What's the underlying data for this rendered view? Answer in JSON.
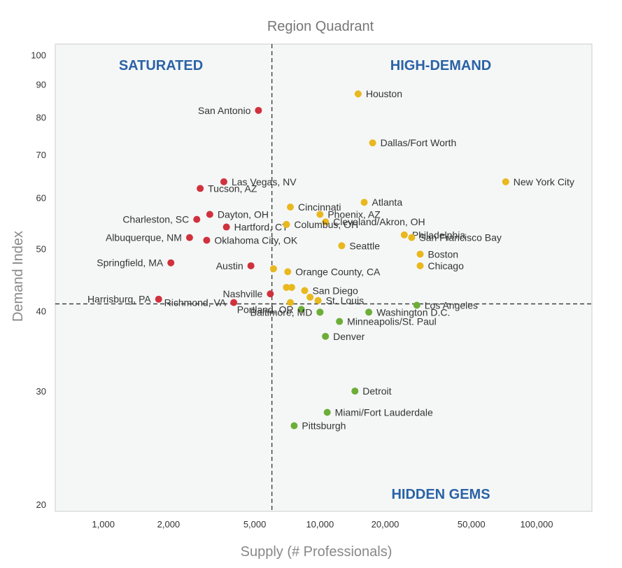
{
  "chart_data": {
    "type": "scatter",
    "title": "Region Quadrant",
    "xlabel": "Supply (# Professionals)",
    "ylabel": "Demand Index",
    "xscale": "log",
    "yscale": "log",
    "xlim": [
      600,
      180000
    ],
    "ylim": [
      19.5,
      104
    ],
    "xticks": [
      1000,
      2000,
      5000,
      10000,
      20000,
      50000,
      100000
    ],
    "xtick_labels": [
      "1,000",
      "2,000",
      "5,000",
      "10,000",
      "20,000",
      "50,000",
      "100,000"
    ],
    "yticks": [
      20,
      30,
      40,
      50,
      60,
      70,
      80,
      90,
      100
    ],
    "ytick_labels": [
      "20",
      "30",
      "40",
      "50",
      "60",
      "70",
      "80",
      "90",
      "100"
    ],
    "divider_x": 6000,
    "divider_y": 41,
    "quadrants": {
      "top_left": "SATURATED",
      "top_right": "HIGH-DEMAND",
      "bottom_right": "HIDDEN GEMS"
    },
    "colors": {
      "saturated": "#d0313d",
      "high_demand": "#e8b81e",
      "hidden_gems": "#6cae37",
      "background": "#f5f7f7",
      "quadrant_label": "#2a62a6"
    },
    "series": [
      {
        "name": "Saturated",
        "color": "#d0313d",
        "points": [
          {
            "label": "San Antonio",
            "x": 5200,
            "y": 82,
            "side": "left"
          },
          {
            "label": "Las Vegas, NV",
            "x": 3600,
            "y": 63.5,
            "side": "right"
          },
          {
            "label": "Tucson, AZ",
            "x": 2800,
            "y": 62,
            "side": "right"
          },
          {
            "label": "Dayton, OH",
            "x": 3100,
            "y": 56.5,
            "side": "right"
          },
          {
            "label": "Charleston, SC",
            "x": 2700,
            "y": 55.5,
            "side": "left"
          },
          {
            "label": "Hartford, CT",
            "x": 3700,
            "y": 54,
            "side": "right"
          },
          {
            "label": "Albuquerque, NM",
            "x": 2500,
            "y": 52,
            "side": "left"
          },
          {
            "label": "Oklahoma City, OK",
            "x": 3000,
            "y": 51.5,
            "side": "right"
          },
          {
            "label": "Springfield, MA",
            "x": 2050,
            "y": 47.5,
            "side": "left"
          },
          {
            "label": "Austin",
            "x": 4800,
            "y": 47,
            "side": "left"
          },
          {
            "label": "Nashville",
            "x": 5900,
            "y": 42.5,
            "side": "left"
          },
          {
            "label": "Harrisburg, PA",
            "x": 1800,
            "y": 41.7,
            "side": "left"
          },
          {
            "label": "Richmond, VA",
            "x": 4000,
            "y": 41.2,
            "side": "left"
          }
        ]
      },
      {
        "name": "High-Demand",
        "color": "#e8b81e",
        "points": [
          {
            "label": "Houston",
            "x": 15000,
            "y": 87,
            "side": "right"
          },
          {
            "label": "Dallas/Fort Worth",
            "x": 17500,
            "y": 73,
            "side": "right"
          },
          {
            "label": "New York City",
            "x": 72000,
            "y": 63.5,
            "side": "right"
          },
          {
            "label": "Atlanta",
            "x": 16000,
            "y": 59,
            "side": "right"
          },
          {
            "label": "Cincinnati",
            "x": 7300,
            "y": 58,
            "side": "right"
          },
          {
            "label": "Phoenix, AZ",
            "x": 10000,
            "y": 56.5,
            "side": "right"
          },
          {
            "label": "Cleveland/Akron, OH",
            "x": 10600,
            "y": 55,
            "side": "right"
          },
          {
            "label": "",
            "x": 7000,
            "y": 54.5,
            "side": "right"
          },
          {
            "label": "Columbus, OH",
            "x": 7000,
            "y": 54.5,
            "side": "right"
          },
          {
            "label": "Philadelphia",
            "x": 24500,
            "y": 52.5,
            "side": "right"
          },
          {
            "label": "San Francisco Bay",
            "x": 26500,
            "y": 52,
            "side": "right"
          },
          {
            "label": "Seattle",
            "x": 12600,
            "y": 50.5,
            "side": "right"
          },
          {
            "label": "Boston",
            "x": 29000,
            "y": 49,
            "side": "right"
          },
          {
            "label": "Chicago",
            "x": 29000,
            "y": 47,
            "side": "right"
          },
          {
            "label": "Orange County, CA",
            "x": 7100,
            "y": 46,
            "side": "right"
          },
          {
            "label": "",
            "x": 6100,
            "y": 46.5,
            "side": "right"
          },
          {
            "label": "San Diego",
            "x": 8500,
            "y": 43,
            "side": "right"
          },
          {
            "label": "",
            "x": 7000,
            "y": 43.5,
            "side": "right"
          },
          {
            "label": "",
            "x": 7400,
            "y": 43.5,
            "side": "right"
          },
          {
            "label": "",
            "x": 9000,
            "y": 42,
            "side": "right"
          },
          {
            "label": "",
            "x": 7300,
            "y": 41.2,
            "side": "right"
          },
          {
            "label": "St. Louis",
            "x": 9800,
            "y": 41.5,
            "side": "right"
          }
        ]
      },
      {
        "name": "Hidden Gems",
        "color": "#6cae37",
        "points": [
          {
            "label": "Los Angeles",
            "x": 28000,
            "y": 40.8,
            "side": "right"
          },
          {
            "label": "Washington D.C.",
            "x": 16800,
            "y": 39.8,
            "side": "right"
          },
          {
            "label": "Portland, OR",
            "x": 8200,
            "y": 40.2,
            "side": "left"
          },
          {
            "label": "",
            "x": 10000,
            "y": 39.8,
            "side": "right"
          },
          {
            "label": "Baltimore, MD",
            "x": 10000,
            "y": 39.8,
            "side": "left"
          },
          {
            "label": "Minneapolis/St. Paul",
            "x": 12300,
            "y": 38.5,
            "side": "right"
          },
          {
            "label": "Denver",
            "x": 10600,
            "y": 36.5,
            "side": "right"
          },
          {
            "label": "Detroit",
            "x": 14500,
            "y": 30,
            "side": "right"
          },
          {
            "label": "Miami/Fort Lauderdale",
            "x": 10800,
            "y": 27.8,
            "side": "right"
          },
          {
            "label": "Pittsburgh",
            "x": 7600,
            "y": 26.5,
            "side": "right"
          }
        ]
      }
    ]
  }
}
